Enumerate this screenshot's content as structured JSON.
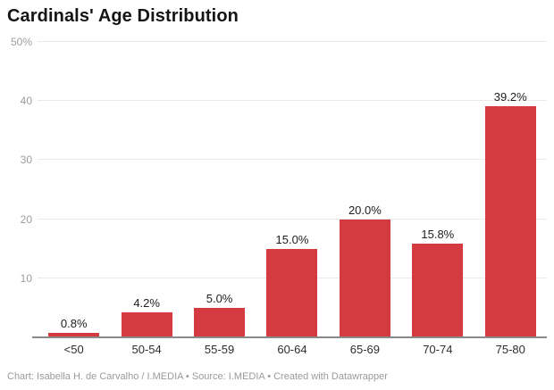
{
  "header": {
    "title": "Cardinals' Age Distribution"
  },
  "chart_data": {
    "type": "bar",
    "title": "Cardinals' Age Distribution",
    "categories": [
      "<50",
      "50-54",
      "55-59",
      "60-64",
      "65-69",
      "70-74",
      "75-80"
    ],
    "values": [
      0.8,
      4.2,
      5.0,
      15.0,
      20.0,
      15.8,
      39.2
    ],
    "value_labels": [
      "0.8%",
      "4.2%",
      "5.0%",
      "15.0%",
      "20.0%",
      "15.8%",
      "39.2%"
    ],
    "xlabel": "",
    "ylabel": "",
    "ylim": [
      0,
      50
    ],
    "yticks": [
      {
        "value": 10,
        "label": "10"
      },
      {
        "value": 20,
        "label": "20"
      },
      {
        "value": 30,
        "label": "30"
      },
      {
        "value": 40,
        "label": "40"
      },
      {
        "value": 50,
        "label": "50%"
      }
    ],
    "grid": "horizontal",
    "legend": "none",
    "bar_color": "#d33b40"
  },
  "colors": {
    "bar": "#d33b40",
    "axis_line": "#8a8a8a",
    "gridline": "#e9e9e9",
    "tick_label": "#9d9d9d",
    "category_label": "#2e2e2e",
    "value_label": "#1d1d1d",
    "title": "#151515",
    "footer": "#9a9a9a",
    "background": "#ffffff"
  },
  "footer": {
    "text": "Chart: Isabella H. de Carvalho / I.MEDIA • Source: I.MEDIA • Created with Datawrapper"
  }
}
